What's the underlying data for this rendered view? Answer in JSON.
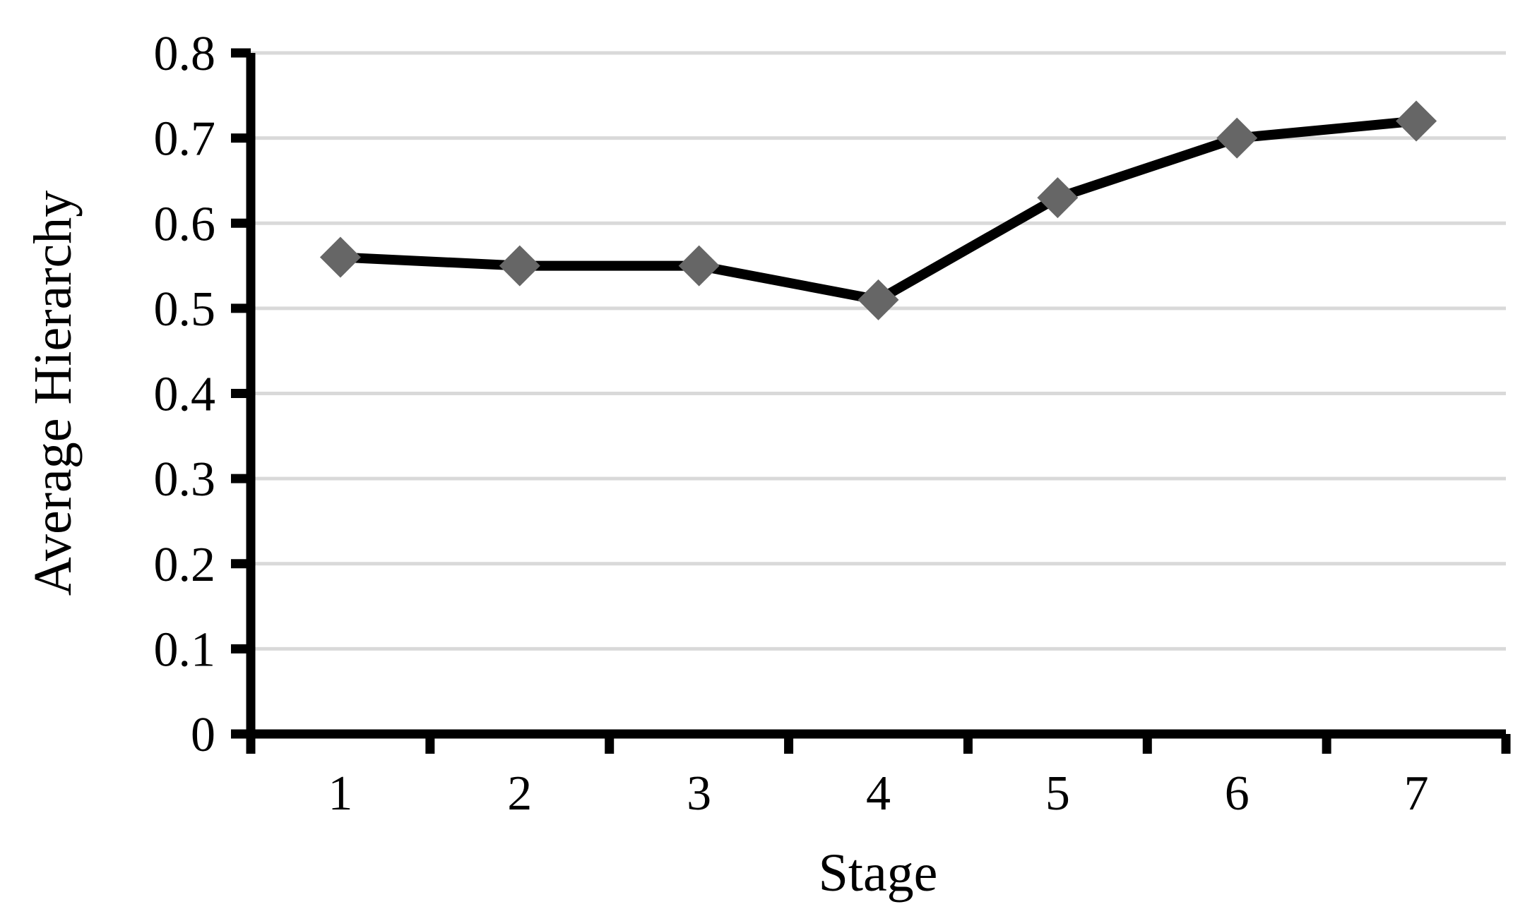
{
  "chart_data": {
    "type": "line",
    "categories": [
      "1",
      "2",
      "3",
      "4",
      "5",
      "6",
      "7"
    ],
    "series": [
      {
        "name": "Average Hierarchy",
        "values": [
          0.56,
          0.55,
          0.55,
          0.51,
          0.63,
          0.7,
          0.72
        ]
      }
    ],
    "title": "",
    "xlabel": "Stage",
    "ylabel": "Average Hierarchy",
    "ylim": [
      0,
      0.8
    ],
    "y_ticks": [
      0,
      0.1,
      0.2,
      0.3,
      0.4,
      0.5,
      0.6,
      0.7,
      0.8
    ],
    "y_tick_labels": [
      "0",
      "0.1",
      "0.2",
      "0.3",
      "0.4",
      "0.5",
      "0.6",
      "0.7",
      "0.8"
    ],
    "grid": "horizontal",
    "legend_position": "none",
    "marker_shape": "diamond",
    "colors": {
      "line": "#000000",
      "marker": "#666666",
      "gridline": "#d9d9d9",
      "axis": "#000000",
      "text": "#000000",
      "background": "#ffffff"
    }
  }
}
